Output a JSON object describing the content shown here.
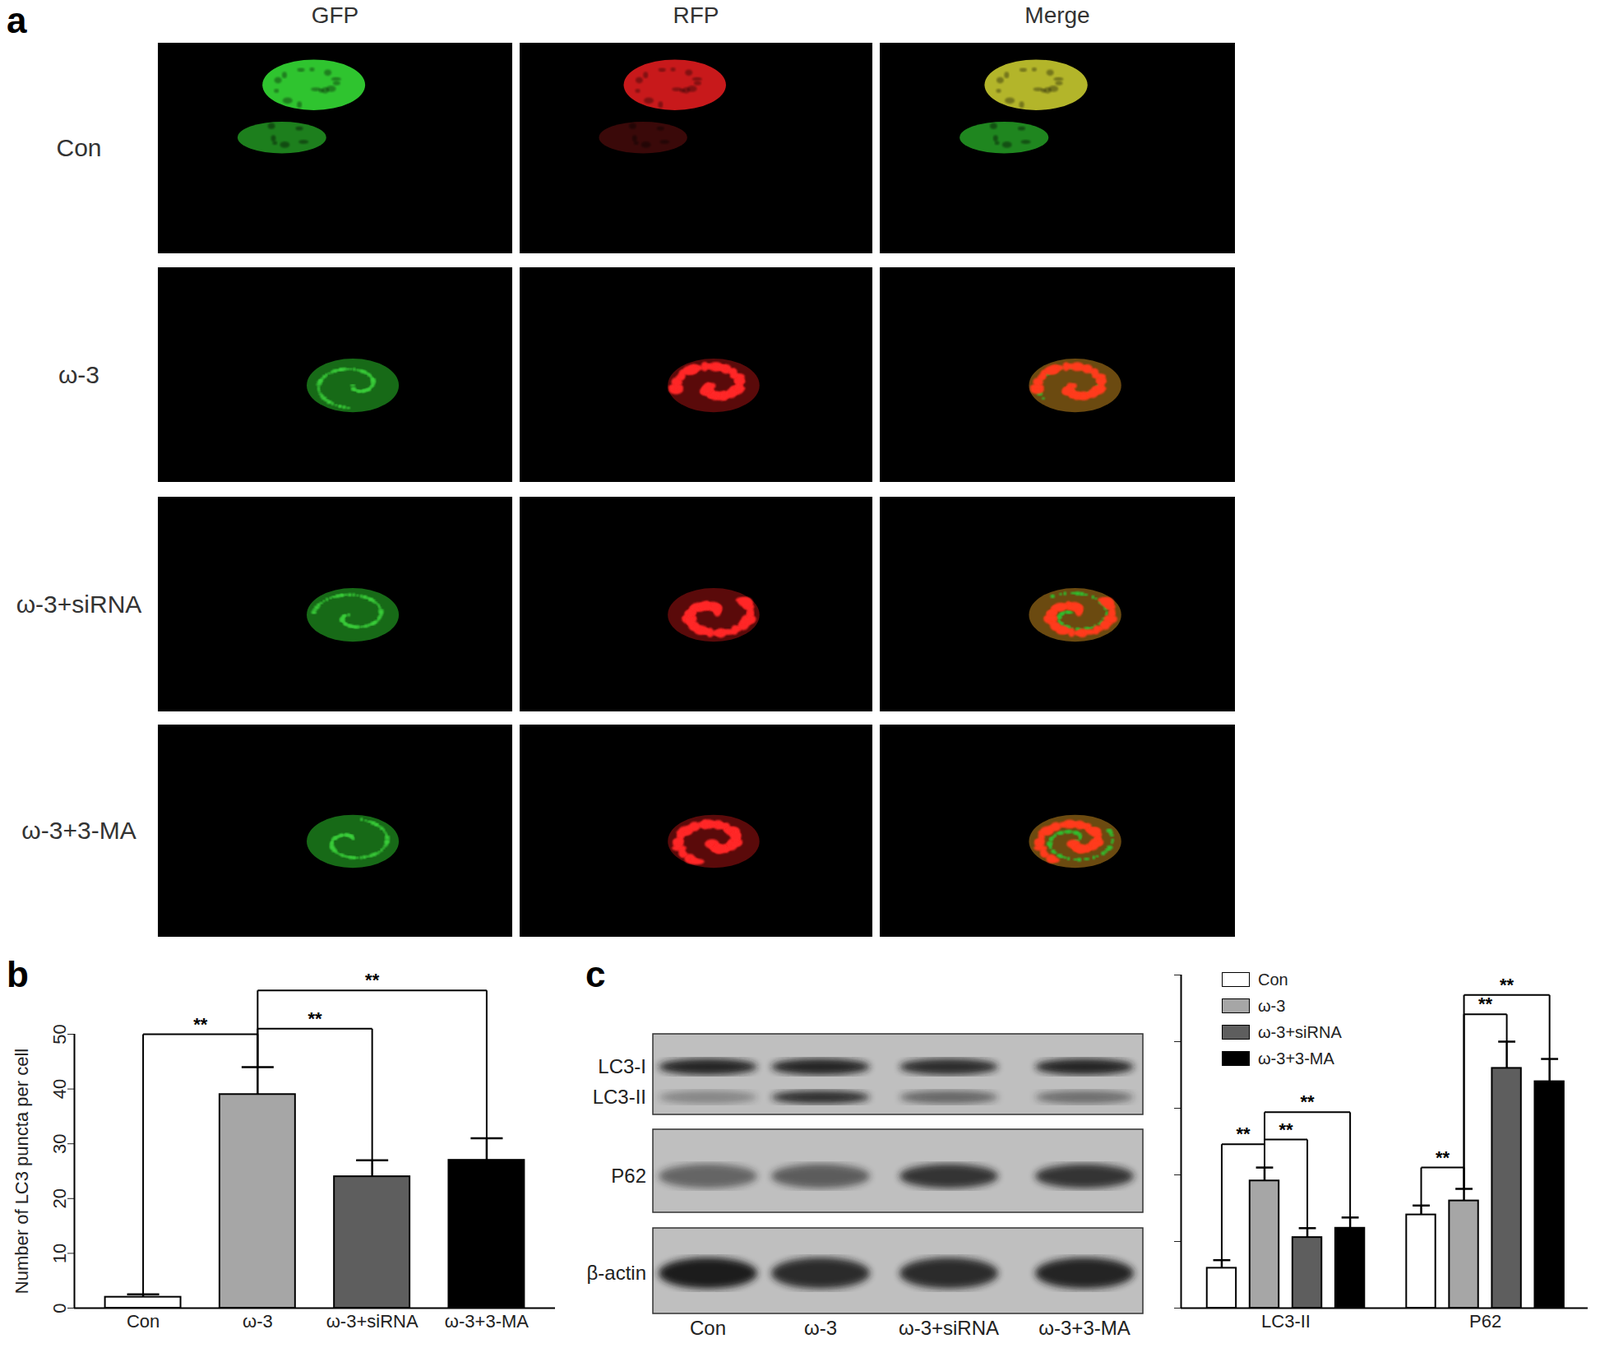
{
  "panel_labels": [
    "a",
    "b",
    "c"
  ],
  "microscopy": {
    "columns": [
      "GFP",
      "RFP",
      "Merge"
    ],
    "rows": [
      "Con",
      "ω-3",
      "ω-3+siRNA",
      "ω-3+3-MA"
    ]
  },
  "blot": {
    "bands": [
      "LC3-I",
      "LC3-II",
      "P62",
      "β-actin"
    ],
    "lanes": [
      "Con",
      "ω-3",
      "ω-3+siRNA",
      "ω-3+3-MA"
    ]
  },
  "chart_data": [
    {
      "type": "bar",
      "y_label": "Number of LC3 puncta per cell",
      "categories": [
        "Con",
        "ω-3",
        "ω-3+siRNA",
        "ω-3+3-MA"
      ],
      "values": [
        2,
        39,
        24,
        27
      ],
      "errors": [
        0.5,
        5,
        3,
        4
      ],
      "colors": [
        "#ffffff",
        "#a6a6a6",
        "#5e5e5e",
        "#000000"
      ],
      "ylim": [
        0,
        50
      ],
      "yticks": [
        0,
        10,
        20,
        30,
        40,
        50
      ],
      "annotations": [
        {
          "from": "Con",
          "to": "ω-3",
          "y": 50,
          "text": "**"
        },
        {
          "from": "ω-3",
          "to": "ω-3+siRNA",
          "y": 51,
          "text": "**"
        },
        {
          "from": "ω-3",
          "to": "ω-3+3-MA",
          "y": 58,
          "text": "**"
        }
      ]
    },
    {
      "type": "bar",
      "categories": [
        "LC3-II",
        "P62"
      ],
      "series": [
        {
          "name": "Con",
          "color": "#ffffff",
          "values": [
            0.6,
            1.4
          ],
          "errors": [
            0.12,
            0.14
          ]
        },
        {
          "name": "ω-3",
          "color": "#a6a6a6",
          "values": [
            1.91,
            1.61
          ],
          "errors": [
            0.2,
            0.18
          ]
        },
        {
          "name": "ω-3+siRNA",
          "color": "#5e5e5e",
          "values": [
            1.06,
            3.6
          ],
          "errors": [
            0.14,
            0.4
          ]
        },
        {
          "name": "ω-3+3-MA",
          "color": "#000000",
          "values": [
            1.2,
            3.4
          ],
          "errors": [
            0.16,
            0.34
          ]
        }
      ],
      "ylim": [
        0,
        5
      ],
      "yticks": [
        0,
        1,
        2,
        3,
        4,
        5
      ],
      "tick_labels": "x",
      "legend": "top-left",
      "annotations": [
        {
          "category": "LC3-II",
          "from": "Con",
          "to": "ω-3",
          "y": 2.46,
          "text": "**"
        },
        {
          "category": "LC3-II",
          "from": "ω-3",
          "to": "ω-3+siRNA",
          "y": 2.53,
          "text": "**"
        },
        {
          "category": "LC3-II",
          "from": "ω-3",
          "to": "ω-3+3-MA",
          "y": 2.94,
          "text": "**"
        },
        {
          "category": "P62",
          "from": "Con",
          "to": "ω-3",
          "y": 2.11,
          "text": "**"
        },
        {
          "category": "P62",
          "from": "ω-3",
          "to": "ω-3+siRNA",
          "y": 4.41,
          "text": "**"
        },
        {
          "category": "P62",
          "from": "ω-3",
          "to": "ω-3+3-MA",
          "y": 4.7,
          "text": "**"
        }
      ]
    }
  ]
}
